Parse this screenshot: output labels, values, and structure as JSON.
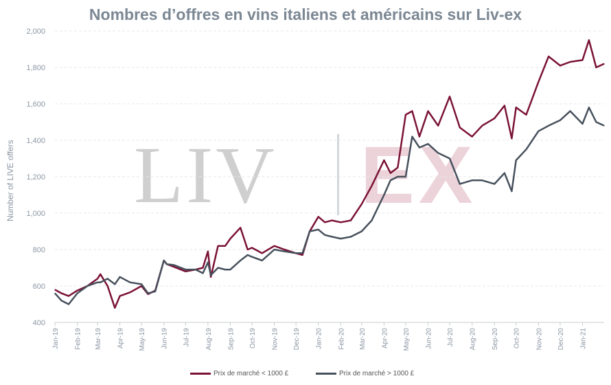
{
  "colors": {
    "series_under": "#7a1236",
    "series_over": "#46505c",
    "title": "#7b8793",
    "axis_text": "#8a96a3",
    "grid": "#e4e7ea"
  },
  "watermark": {
    "left_text": "LIV",
    "right_text": "EX"
  },
  "chart_data": {
    "type": "line",
    "title": "Nombres d’offres en vins italiens et américains sur Liv-ex",
    "ylabel": "Number of LIVE offers",
    "xlabel": "",
    "ylim": [
      400,
      2000
    ],
    "grid": true,
    "legend": "bottom",
    "x_ticks": [
      "Jan-19",
      "Feb-19",
      "Mar-19",
      "Apr-19",
      "May-19",
      "Jun-19",
      "Jul-19",
      "Aug-19",
      "Sep-19",
      "Oct-19",
      "Nov-19",
      "Dec-19",
      "Jan-20",
      "Feb-20",
      "Mar-20",
      "Apr-20",
      "May-20",
      "Jun-20",
      "Jul-20",
      "Aug-20",
      "Sep-20",
      "Oct-20",
      "Nov-20",
      "Dec-20",
      "Jan-21"
    ],
    "y_ticks": [
      "400",
      "600",
      "800",
      "1,000",
      "1,200",
      "1,400",
      "1,600",
      "1,800",
      "2,000"
    ],
    "y_tick_values": [
      400,
      600,
      800,
      1000,
      1200,
      1400,
      1600,
      1800,
      2000
    ],
    "x": [
      "2019-01-01",
      "2019-01-10",
      "2019-01-20",
      "2019-02-01",
      "2019-02-15",
      "2019-03-01",
      "2019-03-05",
      "2019-03-15",
      "2019-03-25",
      "2019-04-01",
      "2019-04-15",
      "2019-05-01",
      "2019-05-10",
      "2019-05-20",
      "2019-06-01",
      "2019-06-05",
      "2019-06-15",
      "2019-07-01",
      "2019-07-15",
      "2019-07-25",
      "2019-08-01",
      "2019-08-05",
      "2019-08-15",
      "2019-08-25",
      "2019-09-01",
      "2019-09-15",
      "2019-09-25",
      "2019-10-01",
      "2019-10-15",
      "2019-11-01",
      "2019-11-15",
      "2019-12-01",
      "2019-12-10",
      "2019-12-20",
      "2020-01-01",
      "2020-01-10",
      "2020-01-20",
      "2020-02-01",
      "2020-02-15",
      "2020-03-01",
      "2020-03-15",
      "2020-04-01",
      "2020-04-10",
      "2020-04-20",
      "2020-05-01",
      "2020-05-10",
      "2020-05-20",
      "2020-06-01",
      "2020-06-15",
      "2020-07-01",
      "2020-07-15",
      "2020-08-01",
      "2020-08-15",
      "2020-09-01",
      "2020-09-15",
      "2020-09-25",
      "2020-10-01",
      "2020-10-15",
      "2020-11-01",
      "2020-11-15",
      "2020-12-01",
      "2020-12-15",
      "2021-01-01",
      "2021-01-10",
      "2021-01-20",
      "2021-01-31"
    ],
    "series": [
      {
        "name": "Prix de marché < 1000 £",
        "values": [
          580,
          560,
          545,
          575,
          600,
          640,
          665,
          600,
          480,
          545,
          565,
          600,
          555,
          575,
          740,
          720,
          705,
          680,
          690,
          700,
          790,
          650,
          820,
          820,
          860,
          920,
          800,
          810,
          780,
          820,
          800,
          780,
          770,
          900,
          980,
          950,
          960,
          950,
          960,
          1050,
          1150,
          1290,
          1220,
          1250,
          1540,
          1560,
          1420,
          1560,
          1480,
          1640,
          1470,
          1420,
          1480,
          1520,
          1590,
          1410,
          1580,
          1540,
          1720,
          1860,
          1810,
          1830,
          1840,
          1950,
          1800,
          1820
        ]
      },
      {
        "name": "Prix de marché > 1000 £",
        "values": [
          560,
          520,
          500,
          560,
          600,
          620,
          620,
          640,
          610,
          650,
          620,
          610,
          560,
          570,
          740,
          720,
          715,
          690,
          690,
          670,
          730,
          660,
          700,
          690,
          690,
          740,
          770,
          760,
          740,
          800,
          790,
          780,
          780,
          900,
          910,
          880,
          870,
          860,
          870,
          900,
          960,
          1100,
          1180,
          1200,
          1200,
          1420,
          1360,
          1380,
          1330,
          1300,
          1160,
          1180,
          1180,
          1160,
          1220,
          1120,
          1290,
          1350,
          1450,
          1480,
          1510,
          1560,
          1490,
          1580,
          1500,
          1480
        ]
      }
    ]
  }
}
